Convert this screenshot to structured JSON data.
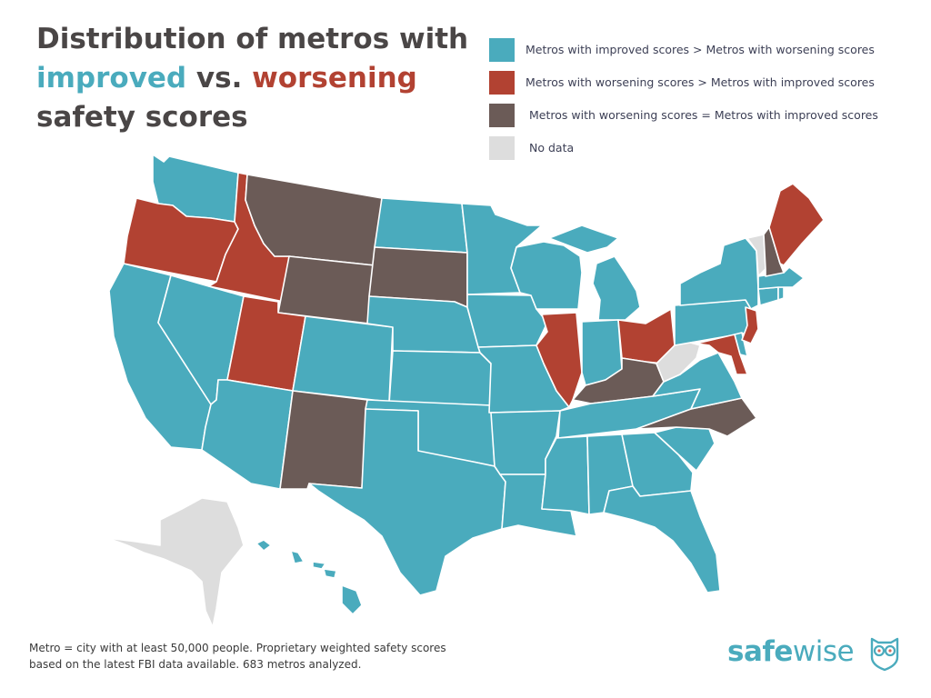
{
  "title": {
    "line1": "Distribution of metros with",
    "improved": "improved",
    "vs": " vs. ",
    "worsening": "worsening",
    "line3": "safety scores"
  },
  "colors": {
    "improved": "#4aabbd",
    "worsening": "#b24232",
    "equal": "#6b5b57",
    "no_data": "#dddddd",
    "title_text": "#4a4646"
  },
  "legend": [
    {
      "key": "improved",
      "label": "Metros with improved scores > Metros with worsening scores",
      "color": "#4aabbd"
    },
    {
      "key": "worsening",
      "label": "Metros with worsening scores > Metros with improved scores",
      "color": "#b24232"
    },
    {
      "key": "equal",
      "label": "Metros with worsening scores = Metros with improved scores",
      "color": "#6b5b57"
    },
    {
      "key": "no_data",
      "label": "No data",
      "color": "#dddddd"
    }
  ],
  "map": {
    "categories": {
      "improved": [
        "WA",
        "CA",
        "NV",
        "AZ",
        "CO",
        "ND",
        "NE",
        "KS",
        "OK",
        "TX",
        "MN",
        "IA",
        "MO",
        "AR",
        "LA",
        "WI",
        "MI",
        "IN",
        "TN",
        "MS",
        "AL",
        "GA",
        "FL",
        "SC",
        "VA",
        "PA",
        "NY",
        "MA",
        "CT",
        "RI",
        "DE",
        "HI"
      ],
      "worsening": [
        "OR",
        "ID",
        "UT",
        "IL",
        "OH",
        "NJ",
        "MD",
        "ME"
      ],
      "equal": [
        "MT",
        "WY",
        "SD",
        "NM",
        "KY",
        "NC",
        "NH"
      ],
      "no_data": [
        "AK",
        "VT",
        "WV"
      ]
    }
  },
  "footer": {
    "line1": "Metro = city with at least 50,000 people. Proprietary weighted safety scores",
    "line2": "based on the latest FBI data available. 683 metros analyzed."
  },
  "logo": {
    "part1": "safe",
    "part2": "wise"
  }
}
